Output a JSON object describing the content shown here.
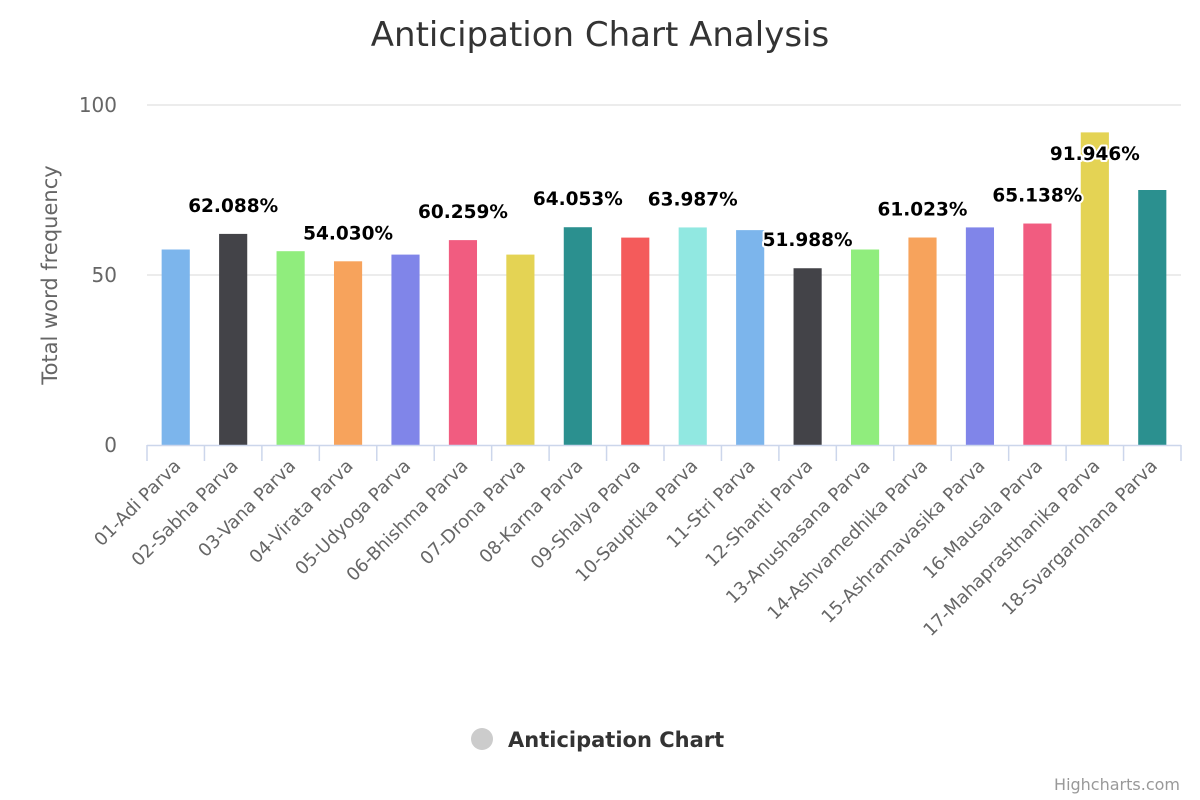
{
  "chart_data": {
    "type": "bar",
    "title": "Anticipation Chart Analysis",
    "ylabel": "Total word frequency",
    "xlabel": "",
    "ylim": [
      0,
      100
    ],
    "yticks": [
      "0",
      "50",
      "100"
    ],
    "ytick_values": [
      0,
      50,
      100
    ],
    "categories": [
      "01-Adi Parva",
      "02-Sabha Parva",
      "03-Vana Parva",
      "04-Virata Parva",
      "05-Udyoga Parva",
      "06-Bhishma Parva",
      "07-Drona Parva",
      "08-Karna Parva",
      "09-Shalya Parva",
      "10-Sauptika Parva",
      "11-Stri Parva",
      "12-Shanti Parva",
      "13-Anushasana Parva",
      "14-Ashvamedhika Parva",
      "15-Ashramavasika Parva",
      "16-Mausala Parva",
      "17-Mahaprasthanika Parva",
      "18-Svargarohana Parva"
    ],
    "values": [
      57.5,
      62.088,
      57.0,
      54.03,
      56.0,
      60.259,
      56.0,
      64.053,
      61.0,
      63.987,
      63.2,
      51.988,
      57.5,
      61.023,
      64.0,
      65.138,
      91.946,
      75.0
    ],
    "data_labels": [
      "",
      "62.088%",
      "",
      "54.030%",
      "",
      "60.259%",
      "",
      "64.053%",
      "",
      "63.987%",
      "",
      "51.988%",
      "",
      "61.023%",
      "",
      "65.138%",
      "91.946%",
      ""
    ],
    "colors": [
      "#7cb5ec",
      "#434348",
      "#90ed7d",
      "#f7a35c",
      "#8085e9",
      "#f15c80",
      "#e4d354",
      "#2b908f",
      "#f45b5b",
      "#91e8e1",
      "#7cb5ec",
      "#434348",
      "#90ed7d",
      "#f7a35c",
      "#8085e9",
      "#f15c80",
      "#e4d354",
      "#2b908f"
    ],
    "legend": {
      "label": "Anticipation Chart",
      "position": "bottom-center",
      "symbol_color": "#cccccc"
    },
    "credits": "Highcharts.com",
    "grid": true,
    "grid_color": "#e6e6e6",
    "axis_color": "#ccd6eb"
  }
}
